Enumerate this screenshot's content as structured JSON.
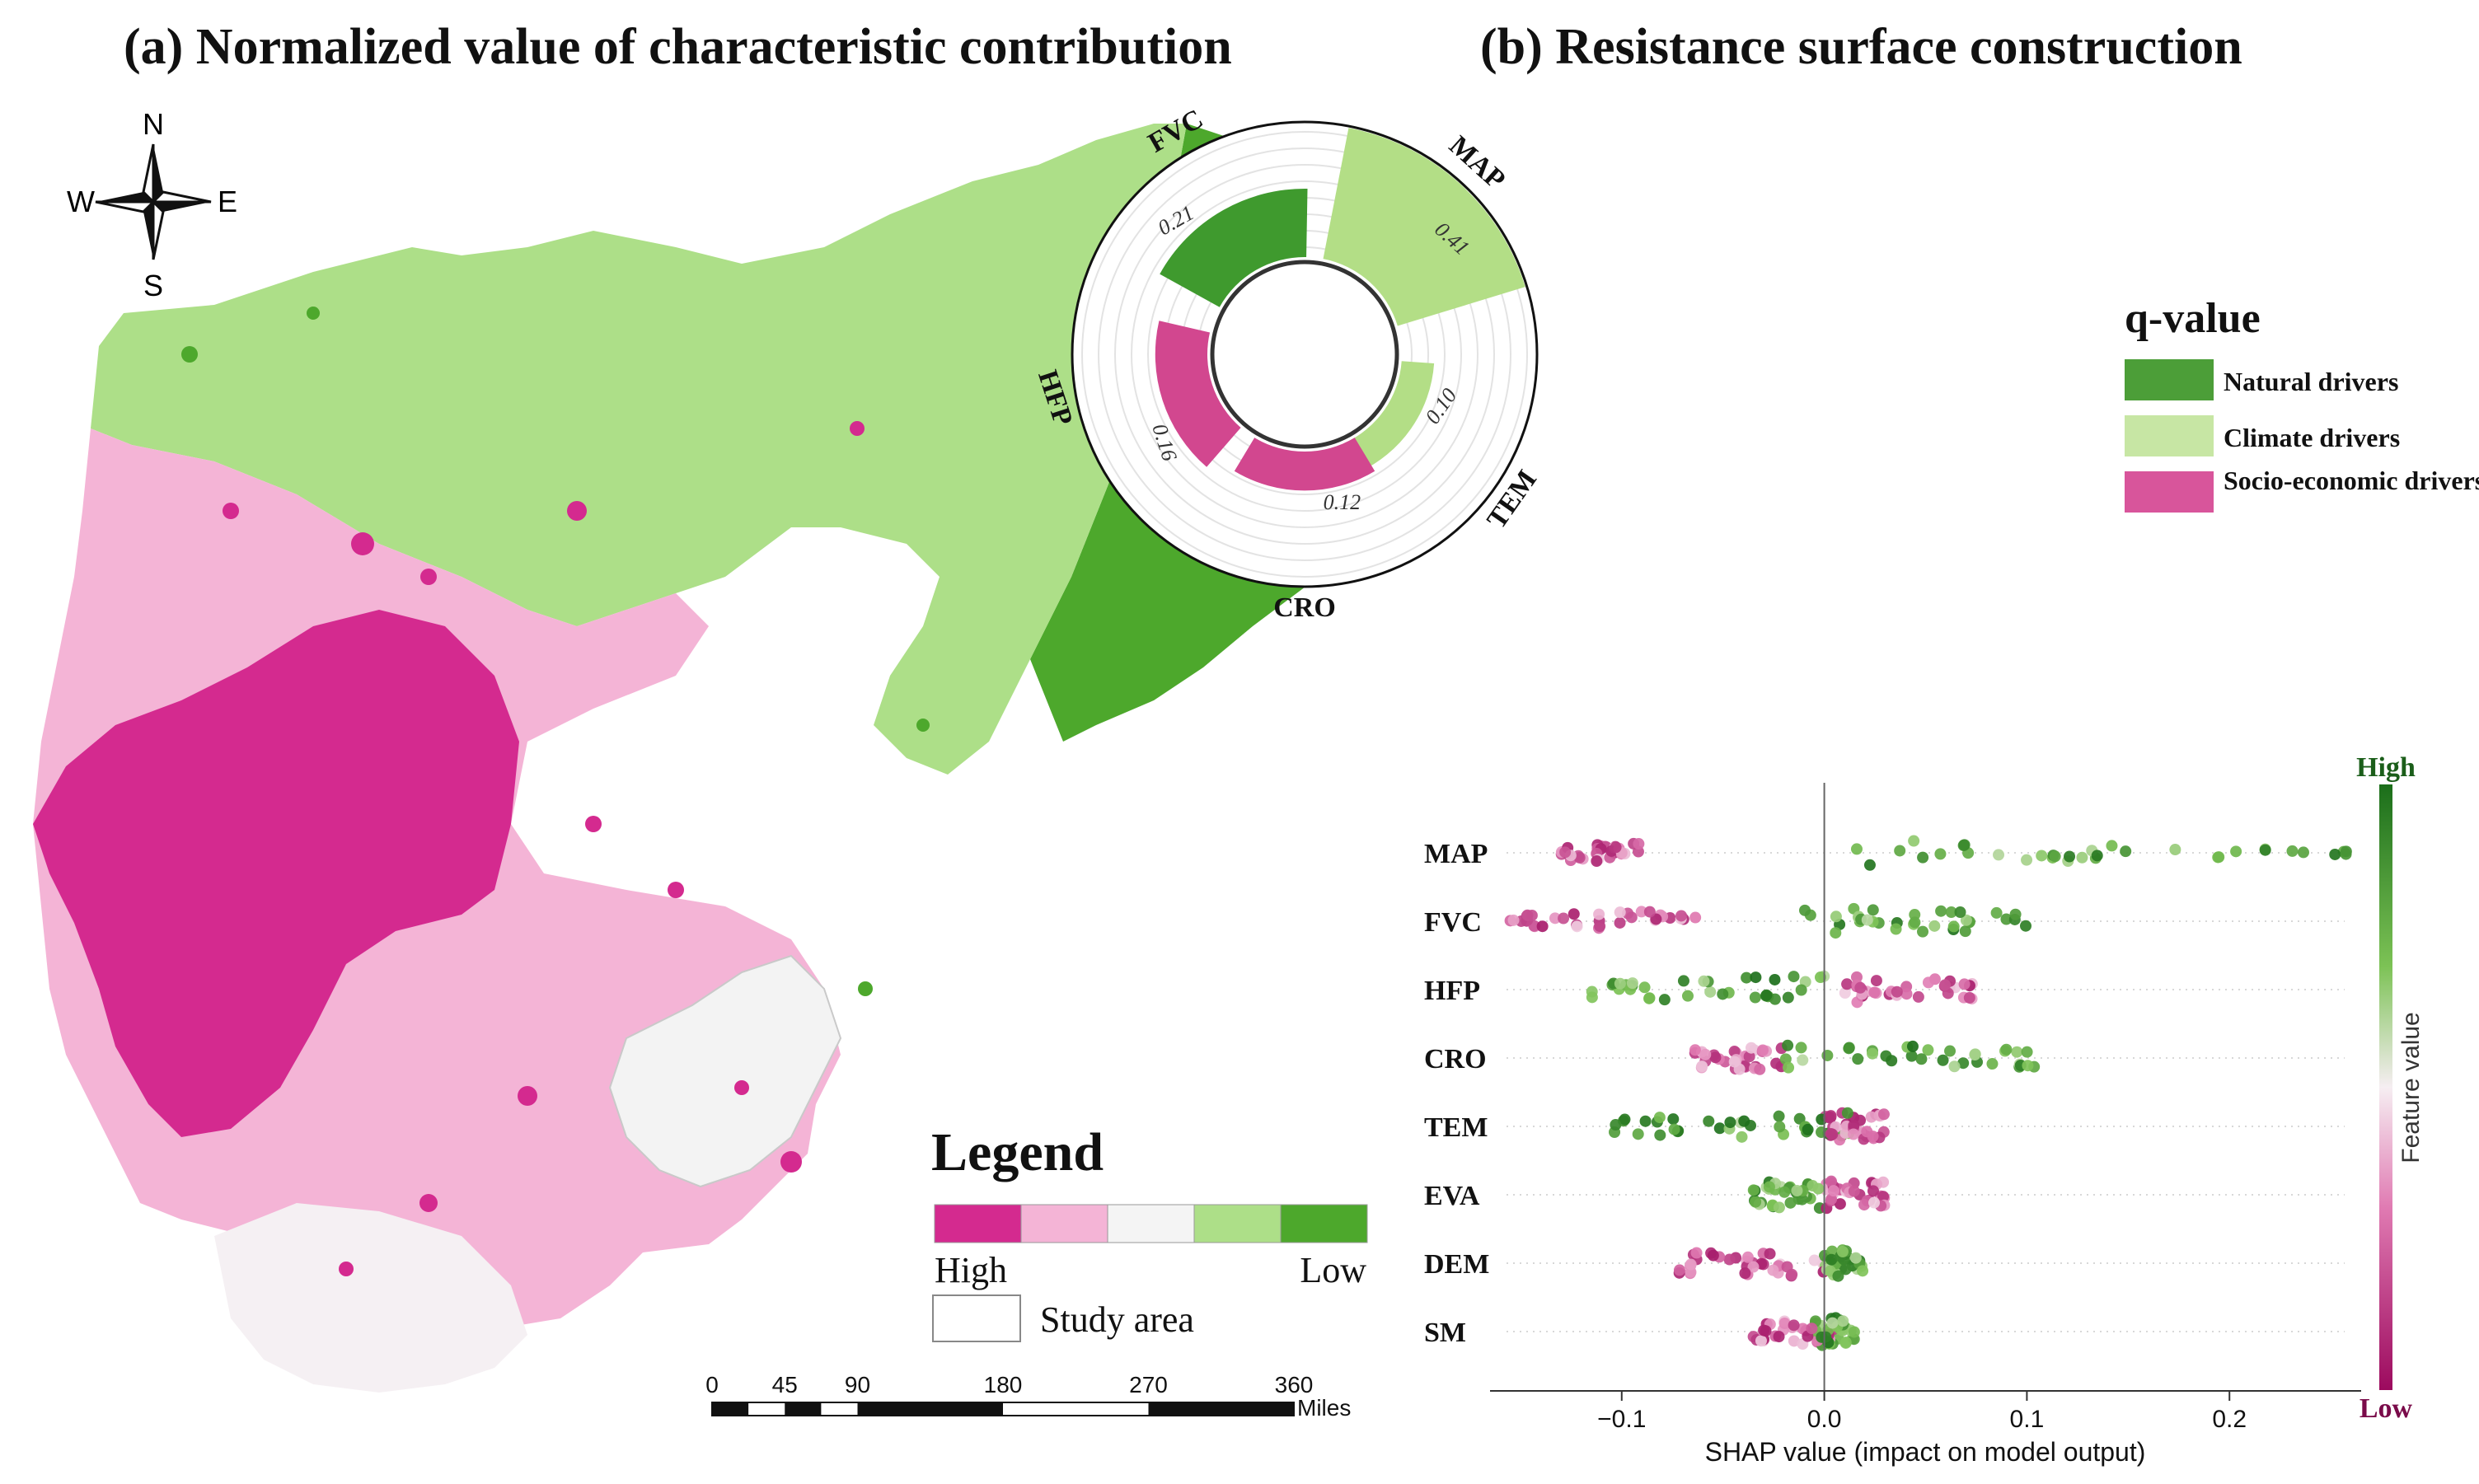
{
  "panel_a": {
    "title": "(a) Normalized value of characteristic contribution",
    "compass": {
      "n": "N",
      "s": "S",
      "e": "E",
      "w": "W"
    },
    "legend": {
      "title": "Legend",
      "high": "High",
      "low": "Low",
      "study_area": "Study area",
      "colors": [
        "#d42a8f",
        "#f4b4d6",
        "#f4f4f4",
        "#addf88",
        "#4da82c"
      ]
    },
    "scalebar": {
      "ticks": [
        "0",
        "45",
        "90",
        "180",
        "270",
        "360"
      ],
      "unit": "Miles"
    }
  },
  "panel_b": {
    "title": "(b) Resistance surface construction",
    "q_legend": {
      "title": "q-value",
      "items": [
        {
          "label": "Natural drivers",
          "color": "#4c9e38"
        },
        {
          "label": "Climate drivers",
          "color": "#b8e08e"
        },
        {
          "label": "Socio-economic drivers",
          "color": "#d8559b"
        }
      ]
    }
  },
  "chart_data": [
    {
      "type": "polar-bar",
      "title": "q-value",
      "categories": [
        "FVC",
        "MAP",
        "TEM",
        "CRO",
        "HFP"
      ],
      "values": [
        0.21,
        0.41,
        0.1,
        0.12,
        0.16
      ],
      "value_labels": [
        "0.21",
        "0.41",
        "0.10",
        "0.12",
        "0.16"
      ],
      "groups": [
        "Natural drivers",
        "Climate drivers",
        "Climate drivers",
        "Socio-economic drivers",
        "Socio-economic drivers"
      ],
      "colors": {
        "Natural drivers": "#4c9e38",
        "Climate drivers": "#b8e08e",
        "Socio-economic drivers": "#d8559b"
      }
    },
    {
      "type": "scatter",
      "subtype": "shap-beeswarm",
      "features": [
        "MAP",
        "FVC",
        "HFP",
        "CRO",
        "TEM",
        "EVA",
        "DEM",
        "SM"
      ],
      "xlabel": "SHAP value (impact on model output)",
      "xlim": [
        -0.165,
        0.265
      ],
      "xticks": [
        -0.1,
        0.0,
        0.1,
        0.2
      ],
      "xtick_labels": [
        "−0.1",
        "0.0",
        "0.1",
        "0.2"
      ],
      "colorbar": {
        "label": "Feature value",
        "high": "High",
        "low": "Low"
      },
      "series": [
        {
          "name": "MAP",
          "min": -0.13,
          "max": 0.26,
          "low_range": [
            -0.13,
            -0.09
          ],
          "high_range": [
            0.01,
            0.26
          ]
        },
        {
          "name": "FVC",
          "min": -0.155,
          "max": 0.1,
          "low_range": [
            -0.155,
            -0.06
          ],
          "high_range": [
            -0.01,
            0.1
          ]
        },
        {
          "name": "HFP",
          "min": -0.115,
          "max": 0.075,
          "low_range": [
            0.01,
            0.075
          ],
          "high_range": [
            -0.115,
            0.0
          ]
        },
        {
          "name": "CRO",
          "min": -0.065,
          "max": 0.105,
          "low_range": [
            -0.065,
            -0.02
          ],
          "high_range": [
            -0.02,
            0.105
          ]
        },
        {
          "name": "TEM",
          "min": -0.105,
          "max": 0.03,
          "low_range": [
            0.0,
            0.03
          ],
          "high_range": [
            -0.105,
            0.02
          ]
        },
        {
          "name": "EVA",
          "min": -0.035,
          "max": 0.03,
          "low_range": [
            0.0,
            0.03
          ],
          "high_range": [
            -0.035,
            0.0
          ]
        },
        {
          "name": "DEM",
          "min": -0.075,
          "max": 0.02,
          "low_range": [
            -0.075,
            0.0
          ],
          "high_range": [
            0.0,
            0.02
          ]
        },
        {
          "name": "SM",
          "min": -0.035,
          "max": 0.015,
          "low_range": [
            -0.035,
            0.005
          ],
          "high_range": [
            -0.005,
            0.015
          ]
        }
      ]
    }
  ]
}
